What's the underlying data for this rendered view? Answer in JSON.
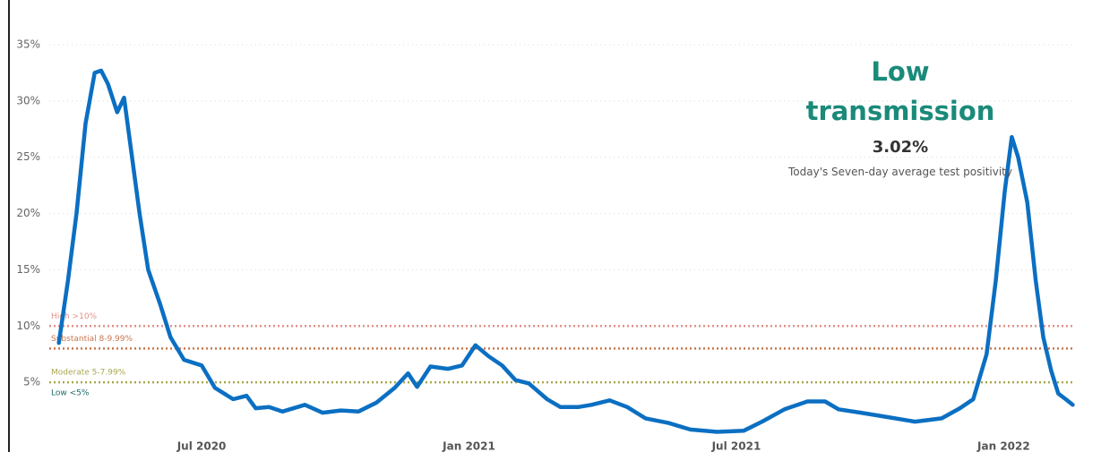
{
  "chart_data": {
    "type": "line",
    "series": [
      {
        "name": "Seven-day average test positivity",
        "color": "#0b6fc2",
        "x": [
          2020.233,
          2020.25,
          2020.266,
          2020.283,
          2020.3,
          2020.312,
          2020.325,
          2020.342,
          2020.355,
          2020.367,
          2020.384,
          2020.4,
          2020.422,
          2020.442,
          2020.467,
          2020.5,
          2020.525,
          2020.559,
          2020.584,
          2020.601,
          2020.626,
          2020.651,
          2020.693,
          2020.726,
          2020.76,
          2020.793,
          2020.827,
          2020.861,
          2020.886,
          2020.903,
          2020.928,
          2020.961,
          2020.987,
          2021.012,
          2021.037,
          2021.062,
          2021.087,
          2021.112,
          2021.146,
          2021.171,
          2021.204,
          2021.229,
          2021.263,
          2021.296,
          2021.33,
          2021.372,
          2021.414,
          2021.464,
          2021.514,
          2021.548,
          2021.59,
          2021.633,
          2021.666,
          2021.691,
          2021.733,
          2021.784,
          2021.834,
          2021.884,
          2021.918,
          2021.943,
          2021.968,
          2021.985,
          2022.002,
          2022.015,
          2022.027,
          2022.044,
          2022.06,
          2022.074,
          2022.089,
          2022.102,
          2022.116,
          2022.129
        ],
        "values": [
          8.5,
          14,
          20,
          28,
          32.5,
          32.7,
          31.5,
          29,
          30.3,
          26,
          20,
          15,
          12,
          9,
          7,
          6.5,
          4.5,
          3.5,
          3.8,
          2.7,
          2.8,
          2.4,
          3,
          2.3,
          2.5,
          2.4,
          3.2,
          4.5,
          5.8,
          4.6,
          6.4,
          6.2,
          6.5,
          8.3,
          7.3,
          6.5,
          5.2,
          4.9,
          3.5,
          2.8,
          2.8,
          3,
          3.4,
          2.8,
          1.8,
          1.4,
          0.8,
          0.6,
          0.7,
          1.5,
          2.6,
          3.3,
          3.3,
          2.6,
          2.3,
          1.9,
          1.5,
          1.8,
          2.7,
          3.5,
          7.5,
          14,
          22,
          26.8,
          25,
          21,
          14,
          9,
          6,
          4,
          3.5,
          3.0
        ]
      }
    ],
    "xlim": [
      2020.2,
      2022.13
    ],
    "xticks": [
      {
        "value": 2020.5,
        "label": "Jul 2020"
      },
      {
        "value": 2021.0,
        "label": "Jan 2021"
      },
      {
        "value": 2021.5,
        "label": "Jul 2021"
      },
      {
        "value": 2022.0,
        "label": "Jan 2022"
      }
    ],
    "ylim": [
      0,
      35
    ],
    "yticks": [
      {
        "value": 5,
        "label": "5%"
      },
      {
        "value": 10,
        "label": "10%"
      },
      {
        "value": 15,
        "label": "15%"
      },
      {
        "value": 20,
        "label": "20%"
      },
      {
        "value": 25,
        "label": "25%"
      },
      {
        "value": 30,
        "label": "30%"
      },
      {
        "value": 35,
        "label": "35%"
      }
    ],
    "grid": true,
    "thresholds": [
      {
        "label": "High >10%",
        "value": 10,
        "color": "#e0928a"
      },
      {
        "label": "Substantial 8-9.99%",
        "value": 8,
        "color": "#c8764e"
      },
      {
        "label": "Moderate 5-7.99%",
        "value": 5,
        "color": "#a8a84e"
      },
      {
        "label": "Low <5%",
        "color": "#1a6b6b"
      }
    ],
    "annotation": {
      "title": "Low transmission",
      "value": "3.02%",
      "caption": "Today's Seven-day average test positivity"
    }
  }
}
